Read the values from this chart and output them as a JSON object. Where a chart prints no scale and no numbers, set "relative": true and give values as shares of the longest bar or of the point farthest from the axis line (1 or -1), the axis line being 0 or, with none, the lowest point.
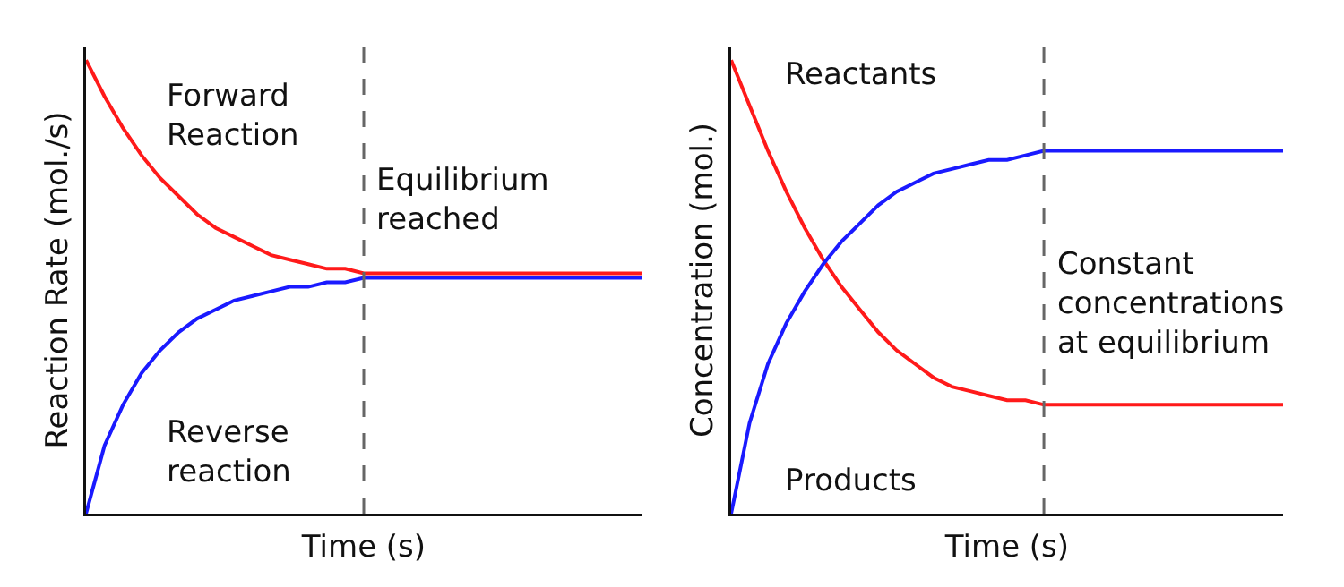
{
  "chart_data": [
    {
      "type": "line",
      "relative": true,
      "xlabel": "Time (s)",
      "ylabel": "Reaction Rate (mol./s)",
      "categories": [
        null,
        null,
        null,
        null,
        null,
        null,
        null,
        null,
        null,
        null,
        null,
        null,
        null,
        null,
        null,
        null,
        null,
        null,
        null,
        null,
        null,
        null,
        null,
        null,
        null,
        null,
        null,
        null,
        null,
        null,
        null
      ],
      "series": [
        {
          "name": "Forward Reaction",
          "color": "#ff1a1a",
          "values": [
            1.0,
            0.92,
            0.85,
            0.79,
            0.74,
            0.7,
            0.66,
            0.63,
            0.61,
            0.59,
            0.57,
            0.56,
            0.55,
            0.54,
            0.54,
            0.53,
            0.53,
            0.53,
            0.53,
            0.53,
            0.53,
            0.53,
            0.53,
            0.53,
            0.53,
            0.53,
            0.53,
            0.53,
            0.53,
            0.53,
            0.53
          ]
        },
        {
          "name": "Reverse reaction",
          "color": "#1a1aff",
          "values": [
            0,
            0.15,
            0.24,
            0.31,
            0.36,
            0.4,
            0.43,
            0.45,
            0.47,
            0.48,
            0.49,
            0.5,
            0.5,
            0.51,
            0.51,
            0.52,
            0.52,
            0.52,
            0.52,
            0.52,
            0.52,
            0.52,
            0.52,
            0.52,
            0.52,
            0.52,
            0.52,
            0.52,
            0.52,
            0.52,
            0.52
          ]
        }
      ],
      "annotations": [
        "Equilibrium reached"
      ]
    },
    {
      "type": "line",
      "relative": true,
      "xlabel": "Time (s)",
      "ylabel": "Concentration (mol.)",
      "categories": [
        null,
        null,
        null,
        null,
        null,
        null,
        null,
        null,
        null,
        null,
        null,
        null,
        null,
        null,
        null,
        null,
        null,
        null,
        null,
        null,
        null,
        null,
        null,
        null,
        null,
        null,
        null,
        null,
        null,
        null,
        null
      ],
      "series": [
        {
          "name": "Reactants",
          "color": "#ff1a1a",
          "values": [
            1.0,
            0.9,
            0.8,
            0.71,
            0.63,
            0.56,
            0.5,
            0.45,
            0.4,
            0.36,
            0.33,
            0.3,
            0.28,
            0.27,
            0.26,
            0.25,
            0.25,
            0.24,
            0.24,
            0.24,
            0.24,
            0.24,
            0.24,
            0.24,
            0.24,
            0.24,
            0.24,
            0.24,
            0.24,
            0.24,
            0.24
          ]
        },
        {
          "name": "Products",
          "color": "#1a1aff",
          "values": [
            0,
            0.2,
            0.33,
            0.42,
            0.49,
            0.55,
            0.6,
            0.64,
            0.68,
            0.71,
            0.73,
            0.75,
            0.76,
            0.77,
            0.78,
            0.78,
            0.79,
            0.8,
            0.8,
            0.8,
            0.8,
            0.8,
            0.8,
            0.8,
            0.8,
            0.8,
            0.8,
            0.8,
            0.8,
            0.8,
            0.8
          ]
        }
      ],
      "annotations": [
        "Constant concentrations at equilibrium"
      ]
    }
  ]
}
